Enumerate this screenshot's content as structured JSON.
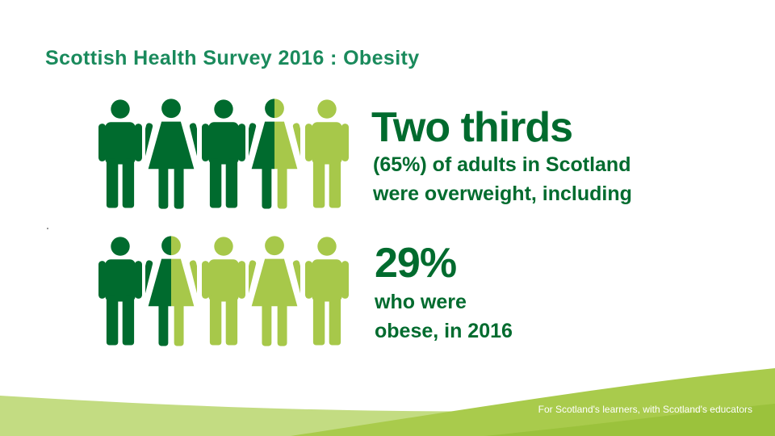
{
  "slide": {
    "title": "Scottish Health Survey 2016 : Obesity"
  },
  "infographic": {
    "overweight_headline": "Two thirds",
    "overweight_line1": "(65%) of adults in Scotland",
    "overweight_line2": "were overweight, including",
    "obese_headline": "29%",
    "obese_line1": "who were",
    "obese_line2": "obese, in 2016",
    "colors": {
      "dark_green": "#006b2e",
      "light_green": "#a7c84a",
      "title_teal": "#1a8a5c"
    },
    "row1_icons": [
      "man-dark",
      "woman-dark",
      "man-dark",
      "woman-half",
      "man-light"
    ],
    "row2_icons": [
      "man-dark",
      "woman-half",
      "man-light",
      "woman-light",
      "man-light"
    ]
  },
  "footer": {
    "text": "For Scotland's learners, with Scotland's educators"
  }
}
